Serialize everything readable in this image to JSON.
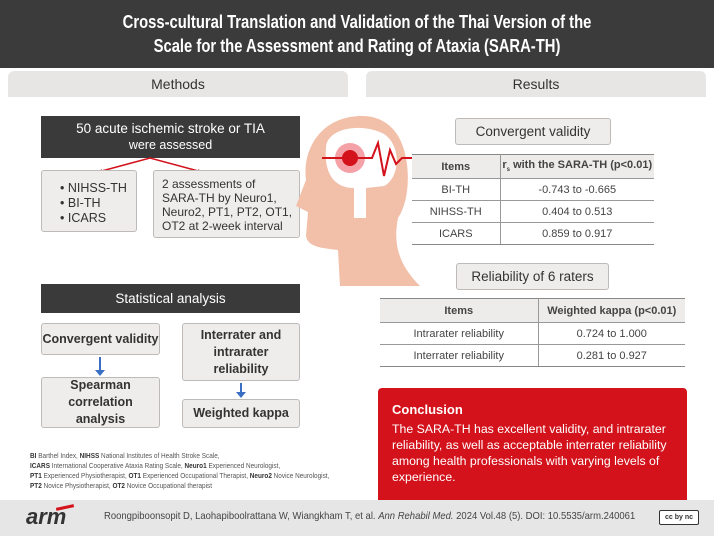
{
  "title": {
    "line1": "Cross-cultural Translation and Validation of the Thai Version of the",
    "line2": "Scale for the Assessment and Rating of Ataxia (SARA-TH)"
  },
  "methods": {
    "tab": "Methods",
    "participants": {
      "line1": "50 acute ischemic stroke or TIA",
      "line2": "were assessed"
    },
    "instruments": [
      "NIHSS-TH",
      "BI-TH",
      "ICARS"
    ],
    "assessments": "2 assessments of SARA-TH  by Neuro1, Neuro2, PT1, PT2, OT1, OT2 at 2-week interval",
    "stats_heading": "Statistical analysis",
    "convergent": "Convergent validity",
    "spearman": "Spearman correlation analysis",
    "reliability": "Interrater and intrarater reliability",
    "kappa": "Weighted kappa"
  },
  "footnote": [
    {
      "abbr": "BI",
      "text": " Barthel Index, "
    },
    {
      "abbr": "NIHSS",
      "text": " National Institutes of Health Stroke Scale,"
    },
    {
      "abbr": "ICARS",
      "text": " International Cooperative Ataxia Rating Scale, "
    },
    {
      "abbr": "Neuro1",
      "text": " Experienced Neurologist,"
    },
    {
      "abbr": "PT1",
      "text": " Experienced Physiotherapist, "
    },
    {
      "abbr": "OT1",
      "text": " Experienced Occupational Therapist, "
    },
    {
      "abbr": "Neuro2",
      "text": " Novice Neurologist,"
    },
    {
      "abbr": "PT2",
      "text": " Novice Physiotherapist, "
    },
    {
      "abbr": "OT2",
      "text": " Novice Occupational therapist"
    }
  ],
  "results": {
    "tab": "Results",
    "convergent_title": "Convergent validity",
    "convergent_table": {
      "headers": [
        "Items",
        "rs with the SARA-TH (p<0.01)"
      ],
      "rows": [
        [
          "BI-TH",
          "-0.743 to -0.665"
        ],
        [
          "NIHSS-TH",
          "0.404 to 0.513"
        ],
        [
          "ICARS",
          "0.859 to 0.917"
        ]
      ]
    },
    "reliability_title": "Reliability of 6 raters",
    "reliability_table": {
      "headers": [
        "Items",
        "Weighted kappa (p<0.01)"
      ],
      "rows": [
        [
          "Intrarater reliability",
          "0.724 to 1.000"
        ],
        [
          "Interrater reliability",
          "0.281 to 0.927"
        ]
      ]
    },
    "conclusion_title": "Conclusion",
    "conclusion": "The SARA-TH has excellent validity, and intrarater reliability, as well as acceptable interrater reliability among health professionals with varying levels of experience."
  },
  "footer": {
    "logo": "arm",
    "authors": "Roongpiboonsopit D, Laohapiboolrattana W, Wiangkham T, et al.",
    "journal": "Ann Rehabil Med.",
    "citation": "2024 Vol.48 (5). DOI: 10.5535/arm.240061",
    "license": "cc by nc"
  },
  "colors": {
    "header": "#3b3b3b",
    "accent_red": "#d3121b",
    "arrow_blue": "#3a6fc4"
  }
}
